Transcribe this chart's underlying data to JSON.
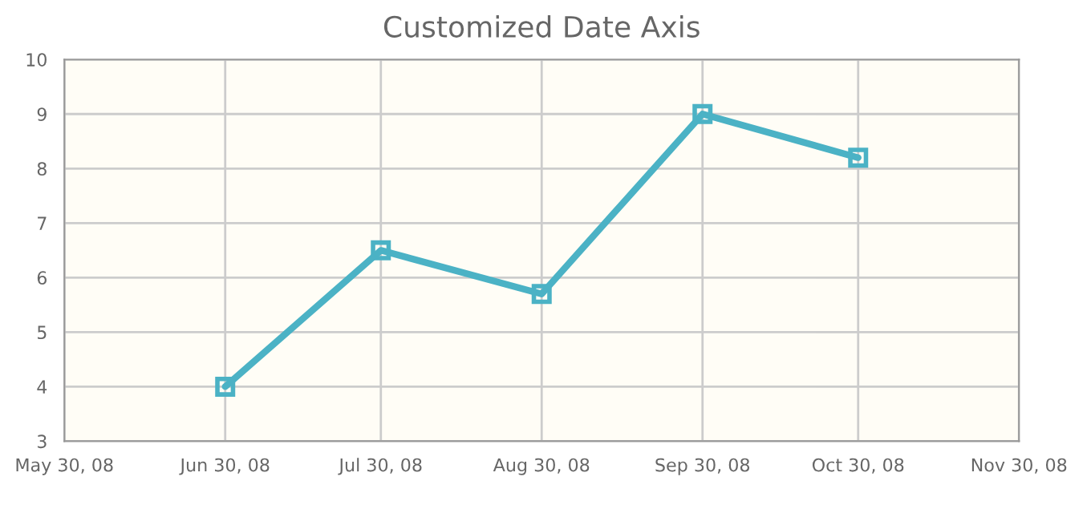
{
  "chart_data": {
    "type": "line",
    "title": "Customized Date Axis",
    "x": [
      "2008-06-30",
      "2008-07-30",
      "2008-08-30",
      "2008-09-30",
      "2008-10-30"
    ],
    "series": [
      {
        "color": "#4bb2c5",
        "values": [
          4,
          6.5,
          5.7,
          9,
          8.2
        ]
      }
    ],
    "xlim": [
      "2008-05-30",
      "2008-11-30"
    ],
    "xticks": [
      {
        "value": "2008-05-30",
        "label": "May 30, 08"
      },
      {
        "value": "2008-06-30",
        "label": "Jun 30, 08"
      },
      {
        "value": "2008-07-30",
        "label": "Jul 30, 08"
      },
      {
        "value": "2008-08-30",
        "label": "Aug 30, 08"
      },
      {
        "value": "2008-09-30",
        "label": "Sep 30, 08"
      },
      {
        "value": "2008-10-30",
        "label": "Oct 30, 08"
      },
      {
        "value": "2008-11-30",
        "label": "Nov 30, 08"
      }
    ],
    "ylim": [
      3,
      10
    ],
    "yticks": [
      3,
      4,
      5,
      6,
      7,
      8,
      9,
      10
    ],
    "grid": true,
    "marker": "square",
    "line_style": "solid"
  }
}
